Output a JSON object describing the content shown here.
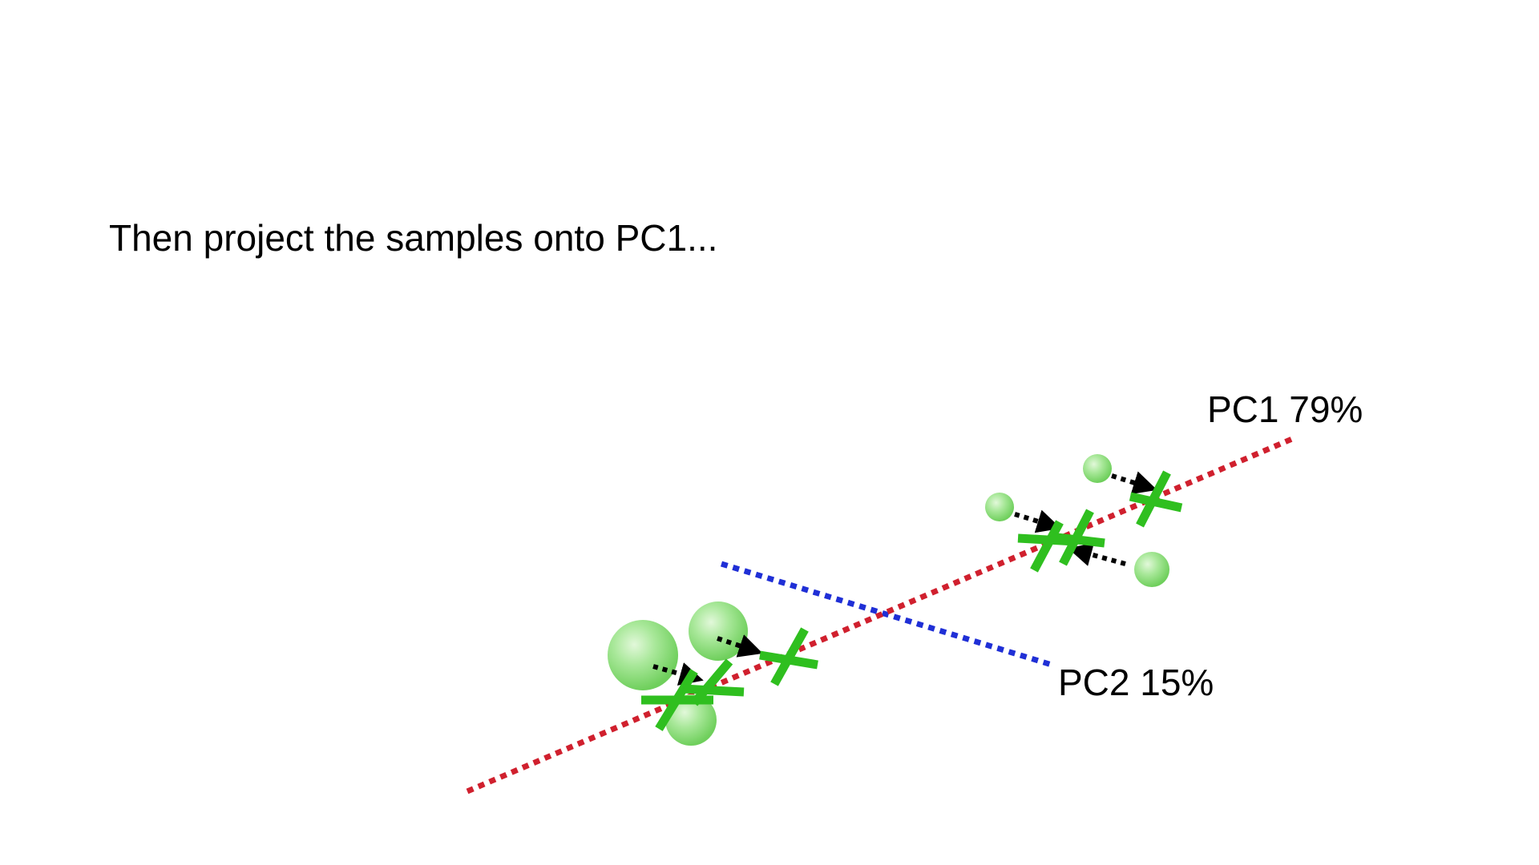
{
  "caption": "Then project the samples onto PC1...",
  "pc1": {
    "label": "PC1 79%",
    "color": "#d0202e"
  },
  "pc2": {
    "label": "PC2 15%",
    "color": "#1f2fd6"
  },
  "sample_color": "#8fdc78",
  "projection_marker_color": "#2fbf1f",
  "arrow_color": "#000000"
}
